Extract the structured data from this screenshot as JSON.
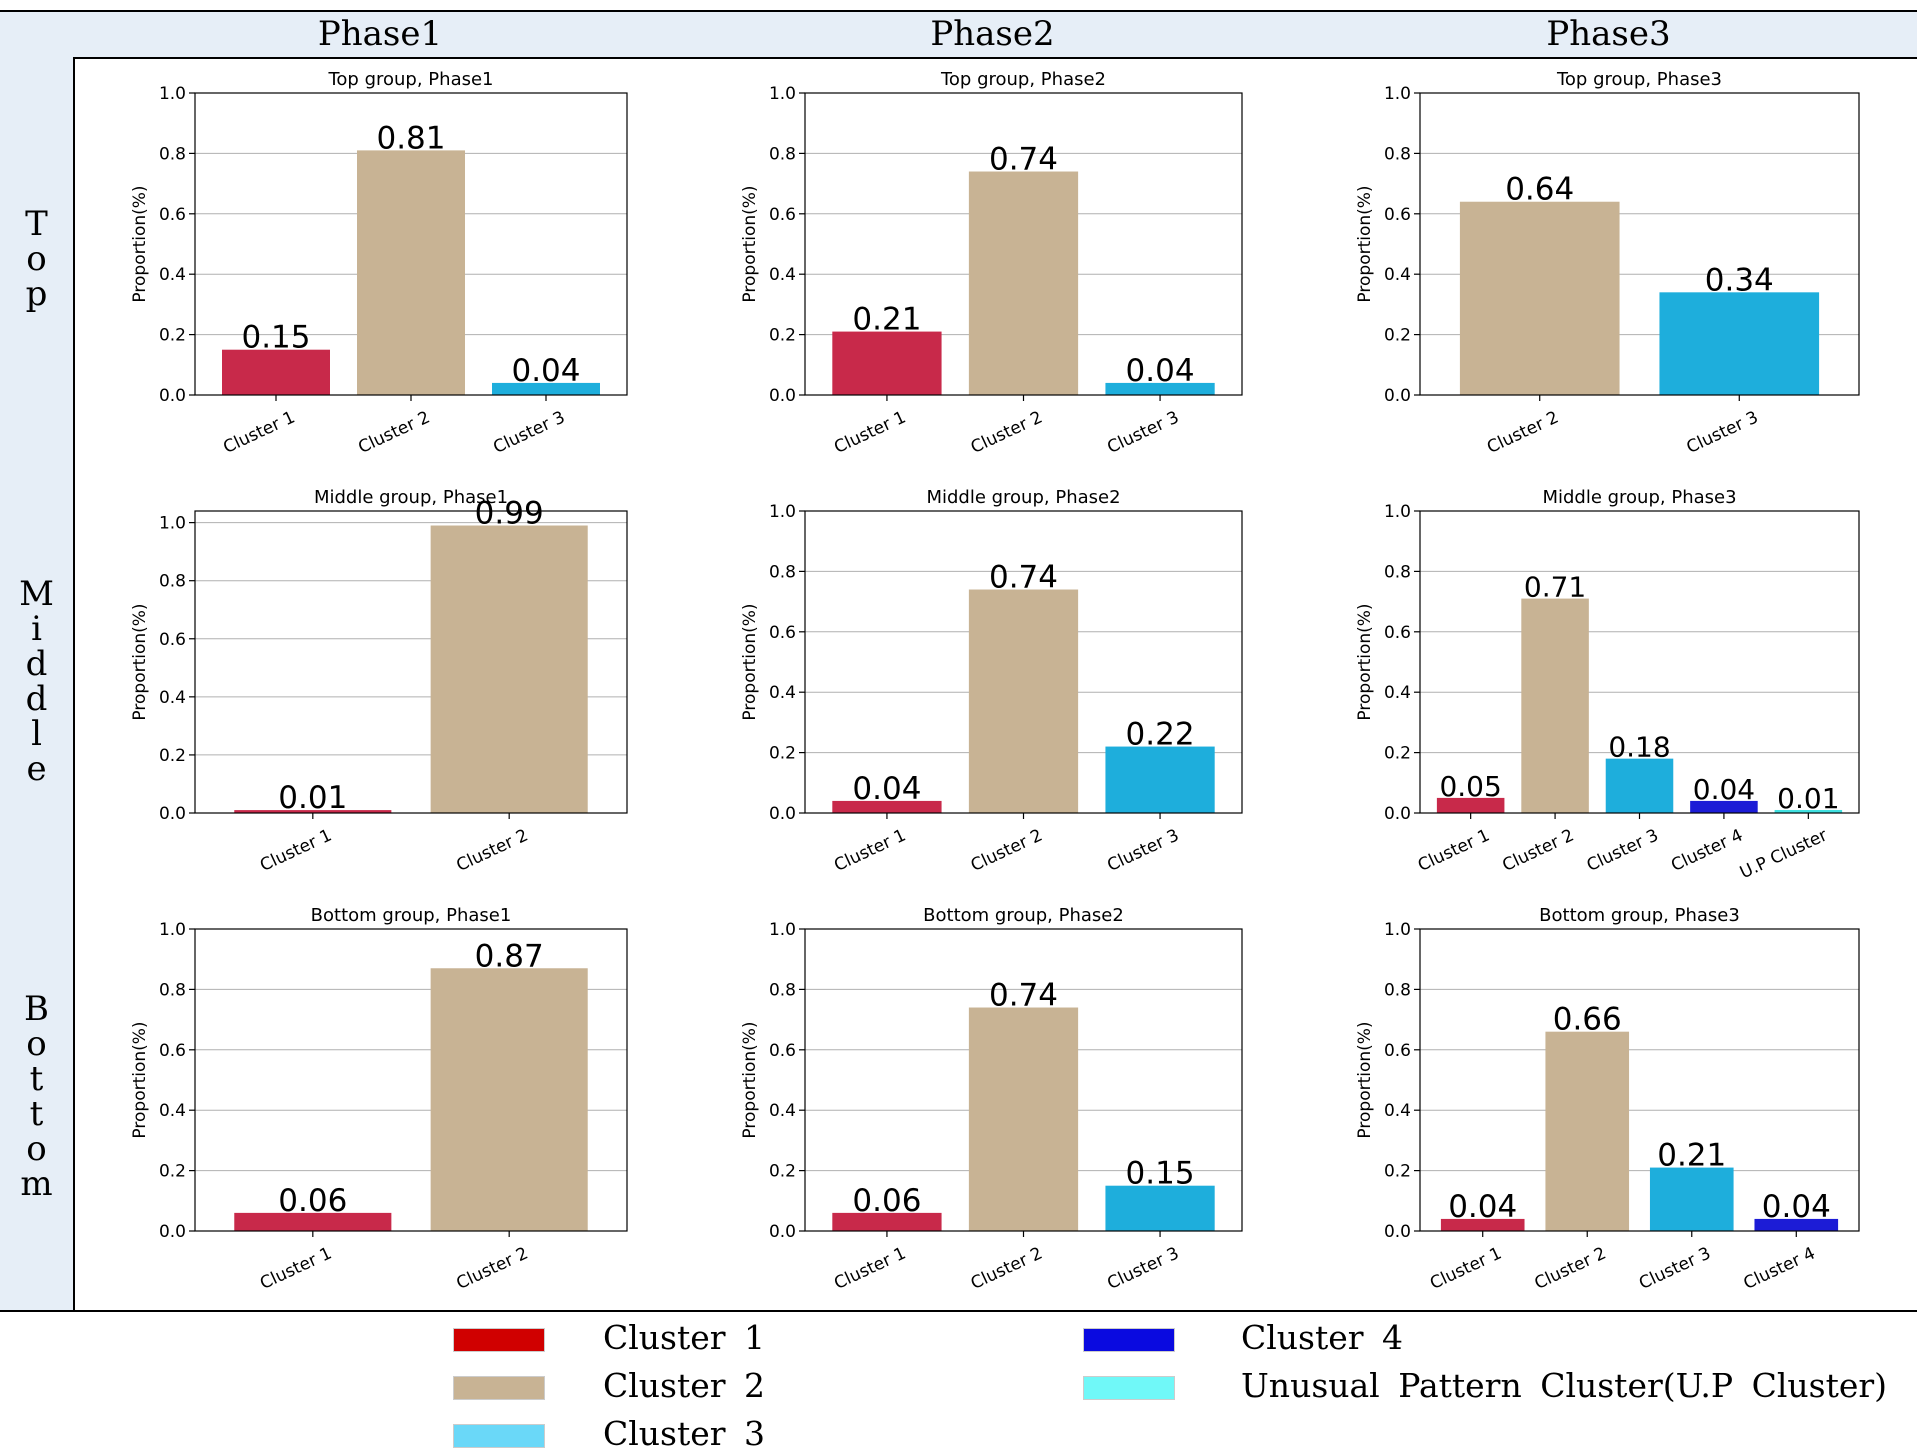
{
  "header": {
    "phases": [
      "Phase1",
      "Phase2",
      "Phase3"
    ]
  },
  "rows": [
    "Top",
    "Middle",
    "Bottom"
  ],
  "colors": {
    "Cluster 1": "#c8294a",
    "Cluster 2": "#c8b394",
    "Cluster 3": "#1eaedc",
    "Cluster 4": "#1c1cd6",
    "U.P Cluster": "#40e0e0"
  },
  "legend": [
    {
      "label": "Cluster  1",
      "color": "#d00000"
    },
    {
      "label": "Cluster  2",
      "color": "#c8b394"
    },
    {
      "label": "Cluster  3",
      "color": "#6ad8f8"
    },
    {
      "label": "Cluster  4",
      "color": "#0a0ae0"
    },
    {
      "label": "Unusual  Pattern  Cluster(U.P  Cluster)",
      "color": "#70f8f8"
    }
  ],
  "chart_data": [
    {
      "type": "bar",
      "title": "Top group, Phase1",
      "ylabel": "Proportion(%)",
      "ylim": [
        0,
        1.0
      ],
      "yticks": [
        "0.0",
        "0.2",
        "0.4",
        "0.6",
        "0.8",
        "1.0"
      ],
      "categories": [
        "Cluster 1",
        "Cluster 2",
        "Cluster 3"
      ],
      "values": [
        0.15,
        0.81,
        0.04
      ],
      "value_labels": [
        "0.15",
        "0.81",
        "0.04"
      ]
    },
    {
      "type": "bar",
      "title": "Top group, Phase2",
      "ylabel": "Proportion(%)",
      "ylim": [
        0,
        1.0
      ],
      "yticks": [
        "0.0",
        "0.2",
        "0.4",
        "0.6",
        "0.8",
        "1.0"
      ],
      "categories": [
        "Cluster 1",
        "Cluster 2",
        "Cluster 3"
      ],
      "values": [
        0.21,
        0.74,
        0.04
      ],
      "value_labels": [
        "0.21",
        "0.74",
        "0.04"
      ]
    },
    {
      "type": "bar",
      "title": "Top group, Phase3",
      "ylabel": "Proportion(%)",
      "ylim": [
        0,
        1.0
      ],
      "yticks": [
        "0.0",
        "0.2",
        "0.4",
        "0.6",
        "0.8",
        "1.0"
      ],
      "categories": [
        "Cluster 2",
        "Cluster 3"
      ],
      "values": [
        0.64,
        0.34
      ],
      "value_labels": [
        "0.64",
        "0.34"
      ]
    },
    {
      "type": "bar",
      "title": "Middle group, Phase1",
      "ylabel": "Proportion(%)",
      "ylim": [
        0,
        1.04
      ],
      "yticks": [
        "0.0",
        "0.2",
        "0.4",
        "0.6",
        "0.8",
        "1.0"
      ],
      "categories": [
        "Cluster 1",
        "Cluster 2"
      ],
      "values": [
        0.01,
        0.99
      ],
      "value_labels": [
        "0.01",
        "0.99"
      ]
    },
    {
      "type": "bar",
      "title": "Middle group, Phase2",
      "ylabel": "Proportion(%)",
      "ylim": [
        0,
        1.0
      ],
      "yticks": [
        "0.0",
        "0.2",
        "0.4",
        "0.6",
        "0.8",
        "1.0"
      ],
      "categories": [
        "Cluster 1",
        "Cluster 2",
        "Cluster 3"
      ],
      "values": [
        0.04,
        0.74,
        0.22
      ],
      "value_labels": [
        "0.04",
        "0.74",
        "0.22"
      ]
    },
    {
      "type": "bar",
      "title": "Middle group, Phase3",
      "ylabel": "Proportion(%)",
      "ylim": [
        0,
        1.0
      ],
      "yticks": [
        "0.0",
        "0.2",
        "0.4",
        "0.6",
        "0.8",
        "1.0"
      ],
      "categories": [
        "Cluster 1",
        "Cluster 2",
        "Cluster 3",
        "Cluster 4",
        "U.P Cluster"
      ],
      "values": [
        0.05,
        0.71,
        0.18,
        0.04,
        0.01
      ],
      "value_labels": [
        "0.05",
        "0.71",
        "0.18",
        "0.04",
        "0.01"
      ]
    },
    {
      "type": "bar",
      "title": "Bottom group, Phase1",
      "ylabel": "Proportion(%)",
      "ylim": [
        0,
        1.0
      ],
      "yticks": [
        "0.0",
        "0.2",
        "0.4",
        "0.6",
        "0.8",
        "1.0"
      ],
      "categories": [
        "Cluster 1",
        "Cluster 2"
      ],
      "values": [
        0.06,
        0.87
      ],
      "value_labels": [
        "0.06",
        "0.87"
      ]
    },
    {
      "type": "bar",
      "title": "Bottom group, Phase2",
      "ylabel": "Proportion(%)",
      "ylim": [
        0,
        1.0
      ],
      "yticks": [
        "0.0",
        "0.2",
        "0.4",
        "0.6",
        "0.8",
        "1.0"
      ],
      "categories": [
        "Cluster 1",
        "Cluster 2",
        "Cluster 3"
      ],
      "values": [
        0.06,
        0.74,
        0.15
      ],
      "value_labels": [
        "0.06",
        "0.74",
        "0.15"
      ]
    },
    {
      "type": "bar",
      "title": "Bottom group, Phase3",
      "ylabel": "Proportion(%)",
      "ylim": [
        0,
        1.0
      ],
      "yticks": [
        "0.0",
        "0.2",
        "0.4",
        "0.6",
        "0.8",
        "1.0"
      ],
      "categories": [
        "Cluster 1",
        "Cluster 2",
        "Cluster 3",
        "Cluster 4"
      ],
      "values": [
        0.04,
        0.66,
        0.21,
        0.04
      ],
      "value_labels": [
        "0.04",
        "0.66",
        "0.21",
        "0.04"
      ]
    }
  ]
}
